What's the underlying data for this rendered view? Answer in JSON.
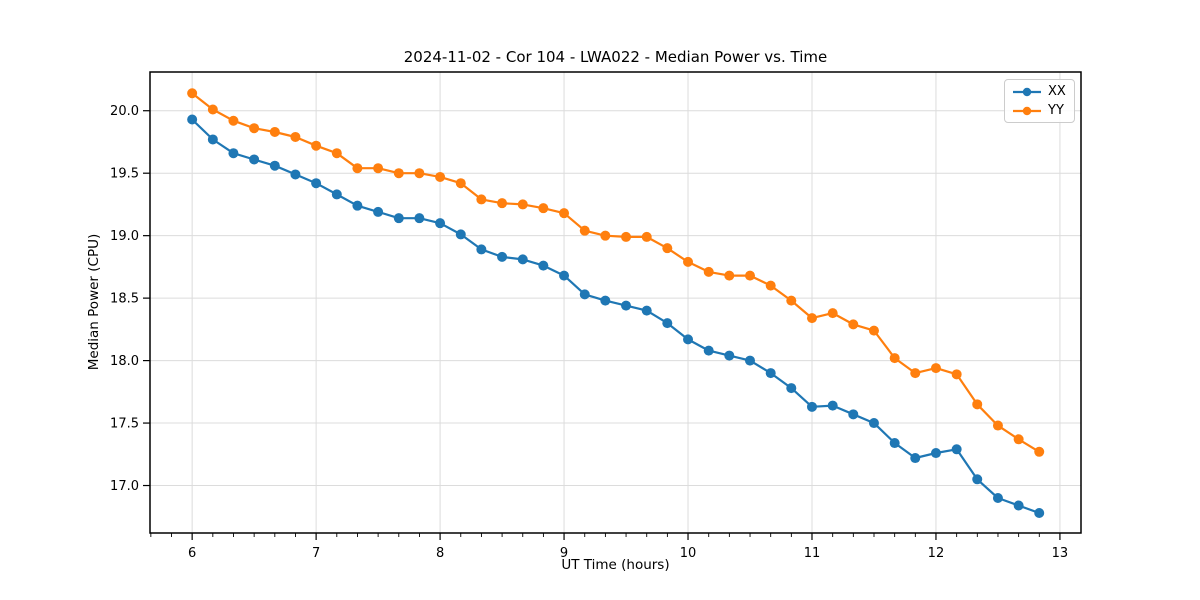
{
  "chart_data": {
    "type": "line",
    "title": "2024-11-02 - Cor 104 - LWA022 - Median Power vs. Time",
    "xlabel": "UT Time (hours)",
    "ylabel": "Median Power (CPU)",
    "xlim": [
      5.66,
      13.17
    ],
    "ylim": [
      16.62,
      20.31
    ],
    "x_ticks": [
      6,
      7,
      8,
      9,
      10,
      11,
      12,
      13
    ],
    "x_minor_tick_step": 0.16667,
    "y_ticks": [
      17.0,
      17.5,
      18.0,
      18.5,
      19.0,
      19.5,
      20.0
    ],
    "grid": true,
    "legend_position": "upper right",
    "x": [
      6.0,
      6.167,
      6.333,
      6.5,
      6.667,
      6.833,
      7.0,
      7.167,
      7.333,
      7.5,
      7.667,
      7.833,
      8.0,
      8.167,
      8.333,
      8.5,
      8.667,
      8.833,
      9.0,
      9.167,
      9.333,
      9.5,
      9.667,
      9.833,
      10.0,
      10.167,
      10.333,
      10.5,
      10.667,
      10.833,
      11.0,
      11.167,
      11.333,
      11.5,
      11.667,
      11.833,
      12.0,
      12.167,
      12.333,
      12.5,
      12.667,
      12.833
    ],
    "series": [
      {
        "name": "XX",
        "color": "#1f77b4",
        "values": [
          19.93,
          19.77,
          19.66,
          19.61,
          19.56,
          19.49,
          19.42,
          19.33,
          19.24,
          19.19,
          19.14,
          19.14,
          19.1,
          19.01,
          18.89,
          18.83,
          18.81,
          18.76,
          18.68,
          18.53,
          18.48,
          18.44,
          18.4,
          18.3,
          18.17,
          18.08,
          18.04,
          18.0,
          17.9,
          17.78,
          17.63,
          17.64,
          17.57,
          17.5,
          17.34,
          17.22,
          17.26,
          17.29,
          17.05,
          16.9,
          16.84,
          16.78
        ]
      },
      {
        "name": "YY",
        "color": "#ff7f0e",
        "values": [
          20.14,
          20.01,
          19.92,
          19.86,
          19.83,
          19.79,
          19.72,
          19.66,
          19.54,
          19.54,
          19.5,
          19.5,
          19.47,
          19.42,
          19.29,
          19.26,
          19.25,
          19.22,
          19.18,
          19.04,
          19.0,
          18.99,
          18.99,
          18.9,
          18.79,
          18.71,
          18.68,
          18.68,
          18.6,
          18.48,
          18.34,
          18.38,
          18.29,
          18.24,
          18.02,
          17.9,
          17.94,
          17.89,
          17.65,
          17.48,
          17.37,
          17.27
        ]
      }
    ],
    "style": {
      "grid_color": "#dcdcdc",
      "spine_color": "#000000",
      "tick_color": "#000000",
      "background_color": "#ffffff",
      "line_width": 2.2,
      "marker_radius": 5
    }
  }
}
